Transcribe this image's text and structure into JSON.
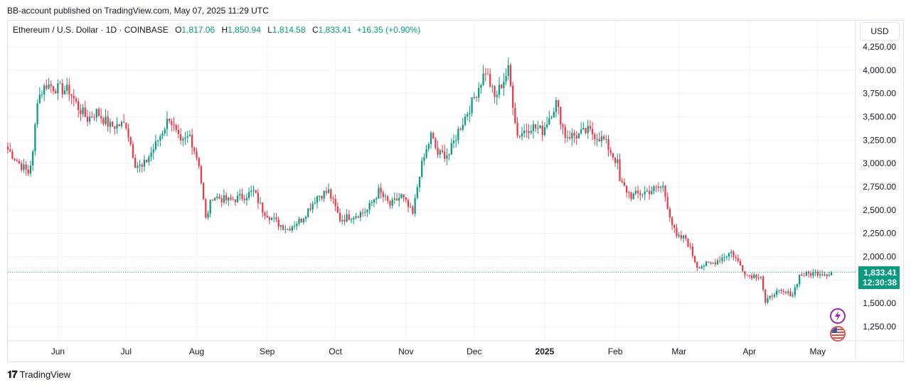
{
  "header": {
    "text": "BB-account published on TradingView.com, May 07, 2025 11:29 UTC"
  },
  "legend": {
    "symbol": "Ethereum / U.S. Dollar · 1D · COINBASE",
    "o_label": "O",
    "o_value": "1,817.06",
    "h_label": "H",
    "h_value": "1,850.94",
    "l_label": "L",
    "l_value": "1,814.58",
    "c_label": "C",
    "c_value": "1,833.41",
    "change": "+16.35 (+0.90%)"
  },
  "currency_button": "USD",
  "price_tag": {
    "price": "1,833.41",
    "countdown": "12:30:38"
  },
  "footer": {
    "brand": "TradingView",
    "logo_icon": "tradingview-logo-icon"
  },
  "icons": {
    "lightning": "lightning-icon",
    "flag": "us-flag-icon"
  },
  "colors": {
    "up": "#089981",
    "down": "#f23645",
    "grid": "#f0f3fa",
    "text": "#131722"
  },
  "chart_data": {
    "type": "candlestick",
    "title": "Ethereum / U.S. Dollar · 1D · COINBASE",
    "y_ticks": [
      1250,
      1500,
      1750,
      2000,
      2250,
      2500,
      2750,
      3000,
      3250,
      3500,
      3750,
      4000,
      4250
    ],
    "y_tick_labels": [
      "1,250.00",
      "1,500.00",
      "1,750.00",
      "2,000.00",
      "2,250.00",
      "2,500.00",
      "2,750.00",
      "3,000.00",
      "3,250.00",
      "3,500.00",
      "3,750.00",
      "4,000.00",
      "4,250.00"
    ],
    "ylim": [
      1150,
      4350
    ],
    "x_ticks": [
      "Jun",
      "Jul",
      "Aug",
      "Sep",
      "Oct",
      "Nov",
      "Dec",
      "2025",
      "Feb",
      "Mar",
      "Apr",
      "May"
    ],
    "x_tick_dates": [
      "2024-06-01",
      "2024-07-01",
      "2024-08-01",
      "2024-09-01",
      "2024-10-01",
      "2024-11-01",
      "2024-12-01",
      "2025-01-01",
      "2025-02-01",
      "2025-03-01",
      "2025-04-01",
      "2025-05-01"
    ],
    "x_range": [
      "2024-05-10",
      "2025-05-12"
    ],
    "last_close": 1833.41,
    "grid": true,
    "close_path": [
      [
        "2024-05-10",
        3150
      ],
      [
        "2024-05-15",
        3000
      ],
      [
        "2024-05-19",
        2900
      ],
      [
        "2024-05-21",
        3100
      ],
      [
        "2024-05-23",
        3700
      ],
      [
        "2024-05-27",
        3850
      ],
      [
        "2024-06-01",
        3800
      ],
      [
        "2024-06-06",
        3780
      ],
      [
        "2024-06-10",
        3600
      ],
      [
        "2024-06-14",
        3480
      ],
      [
        "2024-06-18",
        3550
      ],
      [
        "2024-06-24",
        3400
      ],
      [
        "2024-07-01",
        3420
      ],
      [
        "2024-07-05",
        3000
      ],
      [
        "2024-07-08",
        2950
      ],
      [
        "2024-07-14",
        3200
      ],
      [
        "2024-07-20",
        3500
      ],
      [
        "2024-07-25",
        3200
      ],
      [
        "2024-07-29",
        3300
      ],
      [
        "2024-08-02",
        3000
      ],
      [
        "2024-08-05",
        2400
      ],
      [
        "2024-08-08",
        2650
      ],
      [
        "2024-08-15",
        2600
      ],
      [
        "2024-08-22",
        2650
      ],
      [
        "2024-08-26",
        2700
      ],
      [
        "2024-08-30",
        2500
      ],
      [
        "2024-09-06",
        2350
      ],
      [
        "2024-09-10",
        2300
      ],
      [
        "2024-09-16",
        2400
      ],
      [
        "2024-09-23",
        2650
      ],
      [
        "2024-09-28",
        2700
      ],
      [
        "2024-10-03",
        2400
      ],
      [
        "2024-10-10",
        2450
      ],
      [
        "2024-10-15",
        2500
      ],
      [
        "2024-10-20",
        2700
      ],
      [
        "2024-10-25",
        2550
      ],
      [
        "2024-10-30",
        2650
      ],
      [
        "2024-11-04",
        2450
      ],
      [
        "2024-11-07",
        2900
      ],
      [
        "2024-11-12",
        3300
      ],
      [
        "2024-11-15",
        3100
      ],
      [
        "2024-11-20",
        3100
      ],
      [
        "2024-11-24",
        3350
      ],
      [
        "2024-11-30",
        3650
      ],
      [
        "2024-12-06",
        4000
      ],
      [
        "2024-12-10",
        3700
      ],
      [
        "2024-12-16",
        4000
      ],
      [
        "2024-12-20",
        3300
      ],
      [
        "2024-12-26",
        3400
      ],
      [
        "2024-12-31",
        3350
      ],
      [
        "2025-01-06",
        3650
      ],
      [
        "2025-01-10",
        3300
      ],
      [
        "2025-01-15",
        3300
      ],
      [
        "2025-01-20",
        3350
      ],
      [
        "2025-01-27",
        3250
      ],
      [
        "2025-02-02",
        3000
      ],
      [
        "2025-02-03",
        2800
      ],
      [
        "2025-02-08",
        2650
      ],
      [
        "2025-02-15",
        2700
      ],
      [
        "2025-02-22",
        2750
      ],
      [
        "2025-02-26",
        2350
      ],
      [
        "2025-02-28",
        2200
      ],
      [
        "2025-03-04",
        2200
      ],
      [
        "2025-03-09",
        1900
      ],
      [
        "2025-03-15",
        1920
      ],
      [
        "2025-03-24",
        2050
      ],
      [
        "2025-03-31",
        1800
      ],
      [
        "2025-04-06",
        1800
      ],
      [
        "2025-04-08",
        1500
      ],
      [
        "2025-04-12",
        1620
      ],
      [
        "2025-04-20",
        1600
      ],
      [
        "2025-04-23",
        1800
      ],
      [
        "2025-05-01",
        1830
      ],
      [
        "2025-05-06",
        1817
      ],
      [
        "2025-05-07",
        1833.41
      ]
    ]
  }
}
